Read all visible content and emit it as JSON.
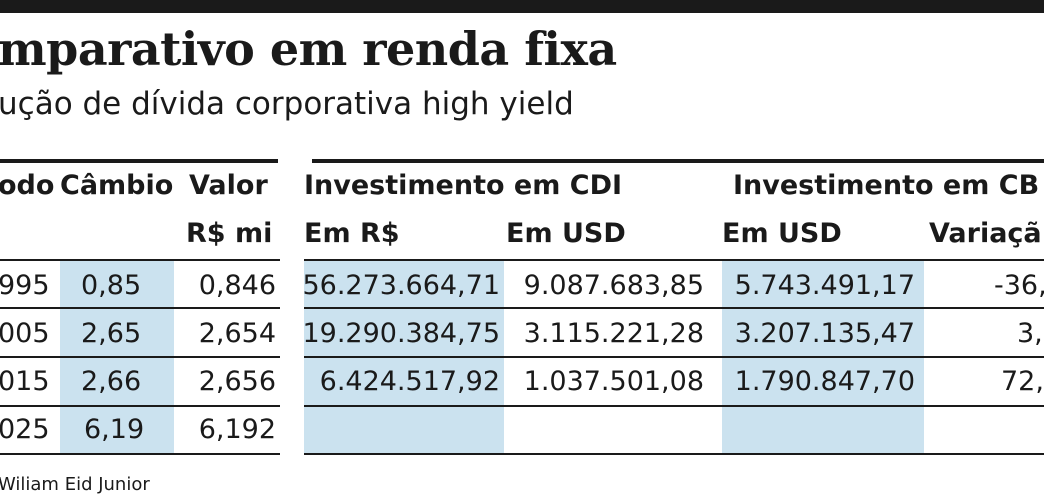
{
  "title": "mparativo em renda fixa",
  "subtitle": "ução de dívida corporativa high yield",
  "headers": {
    "periodo": "odo",
    "cambio": "Câmbio",
    "valor": "Valor",
    "valor_unit": "R$ mi",
    "cdi": "Investimento em CDI",
    "cdi_brl": "Em R$",
    "cdi_usd": "Em USD",
    "cb": "Investimento em CB",
    "cb_usd": "Em USD",
    "cb_var": "Variaçã"
  },
  "rows": [
    {
      "periodo": "995",
      "cambio": "0,85",
      "valor": "0,846",
      "cdi_brl": "56.273.664,71",
      "cdi_usd": "9.087.683,85",
      "cb_usd": "5.743.491,17",
      "cb_var": "-36,"
    },
    {
      "periodo": "005",
      "cambio": "2,65",
      "valor": "2,654",
      "cdi_brl": "19.290.384,75",
      "cdi_usd": "3.115.221,28",
      "cb_usd": "3.207.135,47",
      "cb_var": "3,"
    },
    {
      "periodo": "015",
      "cambio": "2,66",
      "valor": "2,656",
      "cdi_brl": "6.424.517,92",
      "cdi_usd": "1.037.501,08",
      "cb_usd": "1.790.847,70",
      "cb_var": "72,"
    },
    {
      "periodo": "025",
      "cambio": "6,19",
      "valor": "6,192",
      "cdi_brl": "",
      "cdi_usd": "",
      "cb_usd": "",
      "cb_var": ""
    }
  ],
  "source": "Wiliam Eid Junior",
  "colors": {
    "highlight": "#cbe2ef",
    "text": "#1a1a1a"
  }
}
